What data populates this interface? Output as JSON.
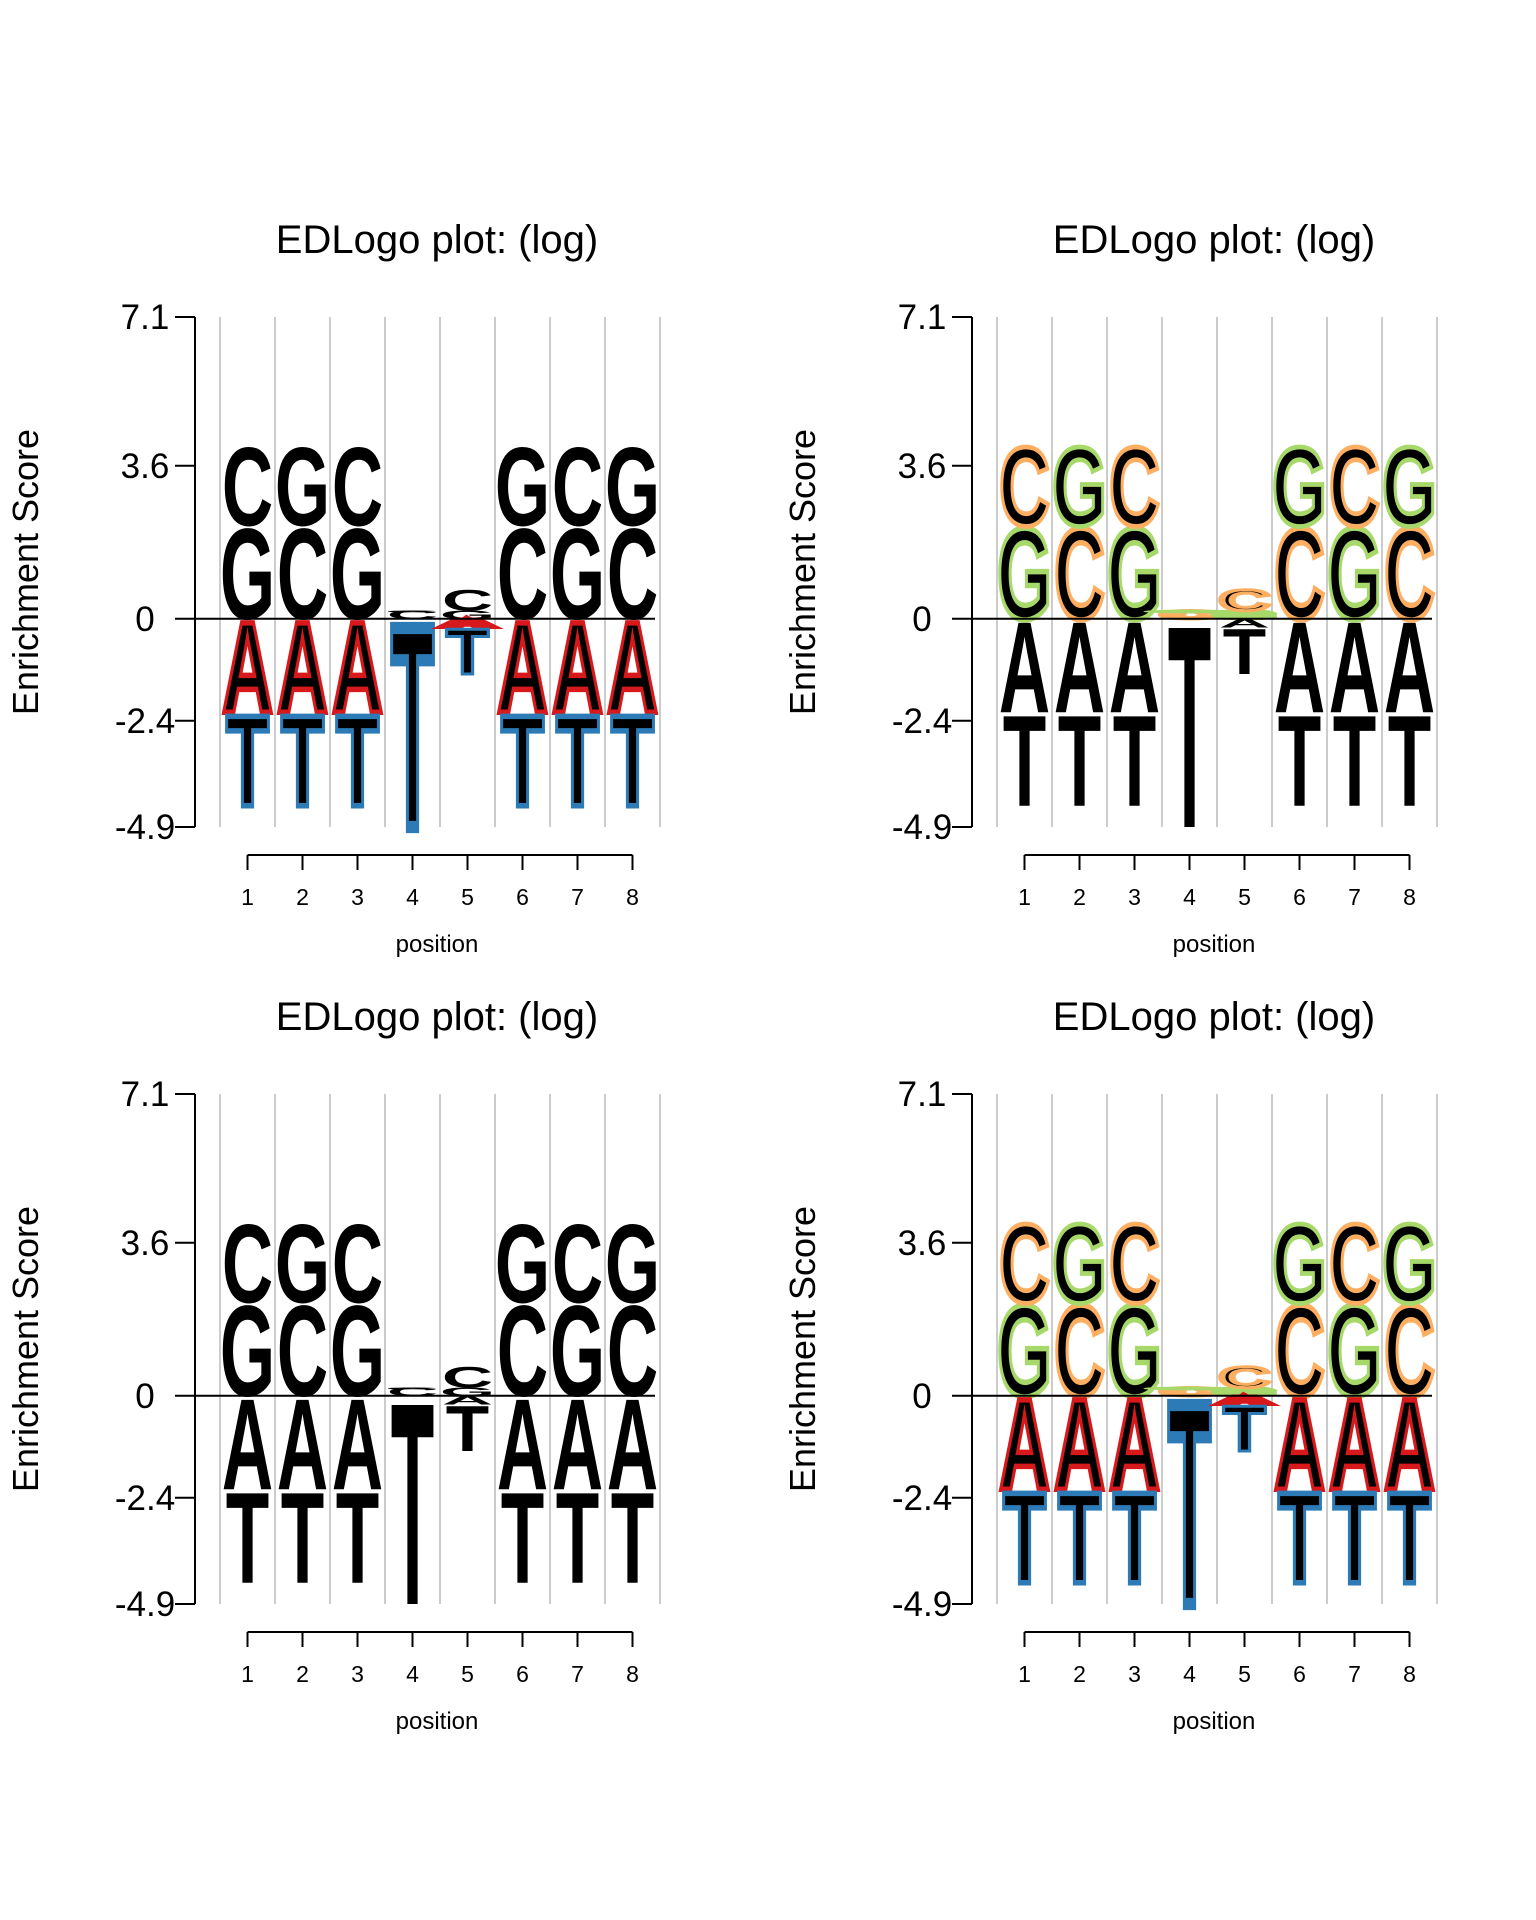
{
  "chart_data": [
    {
      "type": "sequence-logo",
      "title": "EDLogo plot: (log)",
      "ylabel": "Enrichment Score",
      "xlabel": "position",
      "yticks": [
        "7.1",
        "3.6",
        "0",
        "-2.4",
        "-4.9"
      ],
      "ylim": [
        -4.9,
        7.1
      ],
      "xticks": [
        "1",
        "2",
        "3",
        "4",
        "5",
        "6",
        "7",
        "8"
      ],
      "style": "pos-filled-neg-outline",
      "positions": [
        {
          "pos": 1,
          "pos_stack": [
            {
              "letter": "G",
              "value": 2.2
            },
            {
              "letter": "C",
              "value": 4.1
            }
          ],
          "neg_stack": [
            {
              "letter": "A",
              "value": -2.2
            },
            {
              "letter": "T",
              "value": -4.4
            }
          ]
        },
        {
          "pos": 2,
          "pos_stack": [
            {
              "letter": "C",
              "value": 2.2
            },
            {
              "letter": "G",
              "value": 4.1
            }
          ],
          "neg_stack": [
            {
              "letter": "A",
              "value": -2.2
            },
            {
              "letter": "T",
              "value": -4.4
            }
          ]
        },
        {
          "pos": 3,
          "pos_stack": [
            {
              "letter": "G",
              "value": 2.2
            },
            {
              "letter": "C",
              "value": 4.1
            }
          ],
          "neg_stack": [
            {
              "letter": "A",
              "value": -2.2
            },
            {
              "letter": "T",
              "value": -4.4
            }
          ]
        },
        {
          "pos": 4,
          "pos_stack": [
            {
              "letter": "C",
              "value": 0.2
            },
            {
              "letter": "G",
              "value": 0.15
            }
          ],
          "neg_stack": [
            {
              "letter": "T",
              "value": -4.9
            }
          ]
        },
        {
          "pos": 5,
          "pos_stack": [
            {
              "letter": "G",
              "value": 0.2
            },
            {
              "letter": "C",
              "value": 0.7
            }
          ],
          "neg_stack": [
            {
              "letter": "A",
              "value": -0.2
            },
            {
              "letter": "T",
              "value": -1.3
            }
          ]
        },
        {
          "pos": 6,
          "pos_stack": [
            {
              "letter": "C",
              "value": 2.2
            },
            {
              "letter": "G",
              "value": 4.1
            }
          ],
          "neg_stack": [
            {
              "letter": "A",
              "value": -2.2
            },
            {
              "letter": "T",
              "value": -4.4
            }
          ]
        },
        {
          "pos": 7,
          "pos_stack": [
            {
              "letter": "G",
              "value": 2.2
            },
            {
              "letter": "C",
              "value": 4.1
            }
          ],
          "neg_stack": [
            {
              "letter": "A",
              "value": -2.2
            },
            {
              "letter": "T",
              "value": -4.4
            }
          ]
        },
        {
          "pos": 8,
          "pos_stack": [
            {
              "letter": "C",
              "value": 2.2
            },
            {
              "letter": "G",
              "value": 4.1
            }
          ],
          "neg_stack": [
            {
              "letter": "A",
              "value": -2.2
            },
            {
              "letter": "T",
              "value": -4.4
            }
          ]
        }
      ]
    },
    {
      "type": "sequence-logo",
      "title": "EDLogo plot: (log)",
      "ylabel": "Enrichment Score",
      "xlabel": "position",
      "yticks": [
        "7.1",
        "3.6",
        "0",
        "-2.4",
        "-4.9"
      ],
      "ylim": [
        -4.9,
        7.1
      ],
      "xticks": [
        "1",
        "2",
        "3",
        "4",
        "5",
        "6",
        "7",
        "8"
      ],
      "style": "pos-outline-neg-filled",
      "positions": [
        {
          "pos": 1,
          "pos_stack": [
            {
              "letter": "G",
              "value": 2.2
            },
            {
              "letter": "C",
              "value": 4.1
            }
          ],
          "neg_stack": [
            {
              "letter": "A",
              "value": -2.2
            },
            {
              "letter": "T",
              "value": -4.4
            }
          ]
        },
        {
          "pos": 2,
          "pos_stack": [
            {
              "letter": "C",
              "value": 2.2
            },
            {
              "letter": "G",
              "value": 4.1
            }
          ],
          "neg_stack": [
            {
              "letter": "A",
              "value": -2.2
            },
            {
              "letter": "T",
              "value": -4.4
            }
          ]
        },
        {
          "pos": 3,
          "pos_stack": [
            {
              "letter": "G",
              "value": 2.2
            },
            {
              "letter": "C",
              "value": 4.1
            }
          ],
          "neg_stack": [
            {
              "letter": "A",
              "value": -2.2
            },
            {
              "letter": "T",
              "value": -4.4
            }
          ]
        },
        {
          "pos": 4,
          "pos_stack": [
            {
              "letter": "C",
              "value": 0.2
            },
            {
              "letter": "G",
              "value": 0.15
            }
          ],
          "neg_stack": [
            {
              "letter": "T",
              "value": -4.9
            }
          ]
        },
        {
          "pos": 5,
          "pos_stack": [
            {
              "letter": "G",
              "value": 0.2
            },
            {
              "letter": "C",
              "value": 0.7
            }
          ],
          "neg_stack": [
            {
              "letter": "A",
              "value": -0.2
            },
            {
              "letter": "T",
              "value": -1.3
            }
          ]
        },
        {
          "pos": 6,
          "pos_stack": [
            {
              "letter": "C",
              "value": 2.2
            },
            {
              "letter": "G",
              "value": 4.1
            }
          ],
          "neg_stack": [
            {
              "letter": "A",
              "value": -2.2
            },
            {
              "letter": "T",
              "value": -4.4
            }
          ]
        },
        {
          "pos": 7,
          "pos_stack": [
            {
              "letter": "G",
              "value": 2.2
            },
            {
              "letter": "C",
              "value": 4.1
            }
          ],
          "neg_stack": [
            {
              "letter": "A",
              "value": -2.2
            },
            {
              "letter": "T",
              "value": -4.4
            }
          ]
        },
        {
          "pos": 8,
          "pos_stack": [
            {
              "letter": "C",
              "value": 2.2
            },
            {
              "letter": "G",
              "value": 4.1
            }
          ],
          "neg_stack": [
            {
              "letter": "A",
              "value": -2.2
            },
            {
              "letter": "T",
              "value": -4.4
            }
          ]
        }
      ]
    },
    {
      "type": "sequence-logo",
      "title": "EDLogo plot: (log)",
      "ylabel": "Enrichment Score",
      "xlabel": "position",
      "yticks": [
        "7.1",
        "3.6",
        "0",
        "-2.4",
        "-4.9"
      ],
      "ylim": [
        -4.9,
        7.1
      ],
      "xticks": [
        "1",
        "2",
        "3",
        "4",
        "5",
        "6",
        "7",
        "8"
      ],
      "style": "all-filled",
      "positions": [
        {
          "pos": 1,
          "pos_stack": [
            {
              "letter": "G",
              "value": 2.2
            },
            {
              "letter": "C",
              "value": 4.1
            }
          ],
          "neg_stack": [
            {
              "letter": "A",
              "value": -2.2
            },
            {
              "letter": "T",
              "value": -4.4
            }
          ]
        },
        {
          "pos": 2,
          "pos_stack": [
            {
              "letter": "C",
              "value": 2.2
            },
            {
              "letter": "G",
              "value": 4.1
            }
          ],
          "neg_stack": [
            {
              "letter": "A",
              "value": -2.2
            },
            {
              "letter": "T",
              "value": -4.4
            }
          ]
        },
        {
          "pos": 3,
          "pos_stack": [
            {
              "letter": "G",
              "value": 2.2
            },
            {
              "letter": "C",
              "value": 4.1
            }
          ],
          "neg_stack": [
            {
              "letter": "A",
              "value": -2.2
            },
            {
              "letter": "T",
              "value": -4.4
            }
          ]
        },
        {
          "pos": 4,
          "pos_stack": [
            {
              "letter": "C",
              "value": 0.2
            },
            {
              "letter": "G",
              "value": 0.15
            }
          ],
          "neg_stack": [
            {
              "letter": "T",
              "value": -4.9
            }
          ]
        },
        {
          "pos": 5,
          "pos_stack": [
            {
              "letter": "G",
              "value": 0.2
            },
            {
              "letter": "C",
              "value": 0.7
            }
          ],
          "neg_stack": [
            {
              "letter": "A",
              "value": -0.2
            },
            {
              "letter": "T",
              "value": -1.3
            }
          ]
        },
        {
          "pos": 6,
          "pos_stack": [
            {
              "letter": "C",
              "value": 2.2
            },
            {
              "letter": "G",
              "value": 4.1
            }
          ],
          "neg_stack": [
            {
              "letter": "A",
              "value": -2.2
            },
            {
              "letter": "T",
              "value": -4.4
            }
          ]
        },
        {
          "pos": 7,
          "pos_stack": [
            {
              "letter": "G",
              "value": 2.2
            },
            {
              "letter": "C",
              "value": 4.1
            }
          ],
          "neg_stack": [
            {
              "letter": "A",
              "value": -2.2
            },
            {
              "letter": "T",
              "value": -4.4
            }
          ]
        },
        {
          "pos": 8,
          "pos_stack": [
            {
              "letter": "C",
              "value": 2.2
            },
            {
              "letter": "G",
              "value": 4.1
            }
          ],
          "neg_stack": [
            {
              "letter": "A",
              "value": -2.2
            },
            {
              "letter": "T",
              "value": -4.4
            }
          ]
        }
      ]
    },
    {
      "type": "sequence-logo",
      "title": "EDLogo plot: (log)",
      "ylabel": "Enrichment Score",
      "xlabel": "position",
      "yticks": [
        "7.1",
        "3.6",
        "0",
        "-2.4",
        "-4.9"
      ],
      "ylim": [
        -4.9,
        7.1
      ],
      "xticks": [
        "1",
        "2",
        "3",
        "4",
        "5",
        "6",
        "7",
        "8"
      ],
      "style": "all-outline",
      "positions": [
        {
          "pos": 1,
          "pos_stack": [
            {
              "letter": "G",
              "value": 2.2
            },
            {
              "letter": "C",
              "value": 4.1
            }
          ],
          "neg_stack": [
            {
              "letter": "A",
              "value": -2.2
            },
            {
              "letter": "T",
              "value": -4.4
            }
          ]
        },
        {
          "pos": 2,
          "pos_stack": [
            {
              "letter": "C",
              "value": 2.2
            },
            {
              "letter": "G",
              "value": 4.1
            }
          ],
          "neg_stack": [
            {
              "letter": "A",
              "value": -2.2
            },
            {
              "letter": "T",
              "value": -4.4
            }
          ]
        },
        {
          "pos": 3,
          "pos_stack": [
            {
              "letter": "G",
              "value": 2.2
            },
            {
              "letter": "C",
              "value": 4.1
            }
          ],
          "neg_stack": [
            {
              "letter": "A",
              "value": -2.2
            },
            {
              "letter": "T",
              "value": -4.4
            }
          ]
        },
        {
          "pos": 4,
          "pos_stack": [
            {
              "letter": "C",
              "value": 0.2
            },
            {
              "letter": "G",
              "value": 0.15
            }
          ],
          "neg_stack": [
            {
              "letter": "T",
              "value": -4.9
            }
          ]
        },
        {
          "pos": 5,
          "pos_stack": [
            {
              "letter": "G",
              "value": 0.2
            },
            {
              "letter": "C",
              "value": 0.7
            }
          ],
          "neg_stack": [
            {
              "letter": "A",
              "value": -0.2
            },
            {
              "letter": "T",
              "value": -1.3
            }
          ]
        },
        {
          "pos": 6,
          "pos_stack": [
            {
              "letter": "C",
              "value": 2.2
            },
            {
              "letter": "G",
              "value": 4.1
            }
          ],
          "neg_stack": [
            {
              "letter": "A",
              "value": -2.2
            },
            {
              "letter": "T",
              "value": -4.4
            }
          ]
        },
        {
          "pos": 7,
          "pos_stack": [
            {
              "letter": "G",
              "value": 2.2
            },
            {
              "letter": "C",
              "value": 4.1
            }
          ],
          "neg_stack": [
            {
              "letter": "A",
              "value": -2.2
            },
            {
              "letter": "T",
              "value": -4.4
            }
          ]
        },
        {
          "pos": 8,
          "pos_stack": [
            {
              "letter": "C",
              "value": 2.2
            },
            {
              "letter": "G",
              "value": 4.1
            }
          ],
          "neg_stack": [
            {
              "letter": "A",
              "value": -2.2
            },
            {
              "letter": "T",
              "value": -4.4
            }
          ]
        }
      ]
    }
  ],
  "colors": {
    "A": "#d7191c",
    "C": "#fdae61",
    "G": "#a6d96a",
    "T": "#2c7bb6",
    "grid": "#cccccc",
    "axis": "#000000"
  }
}
